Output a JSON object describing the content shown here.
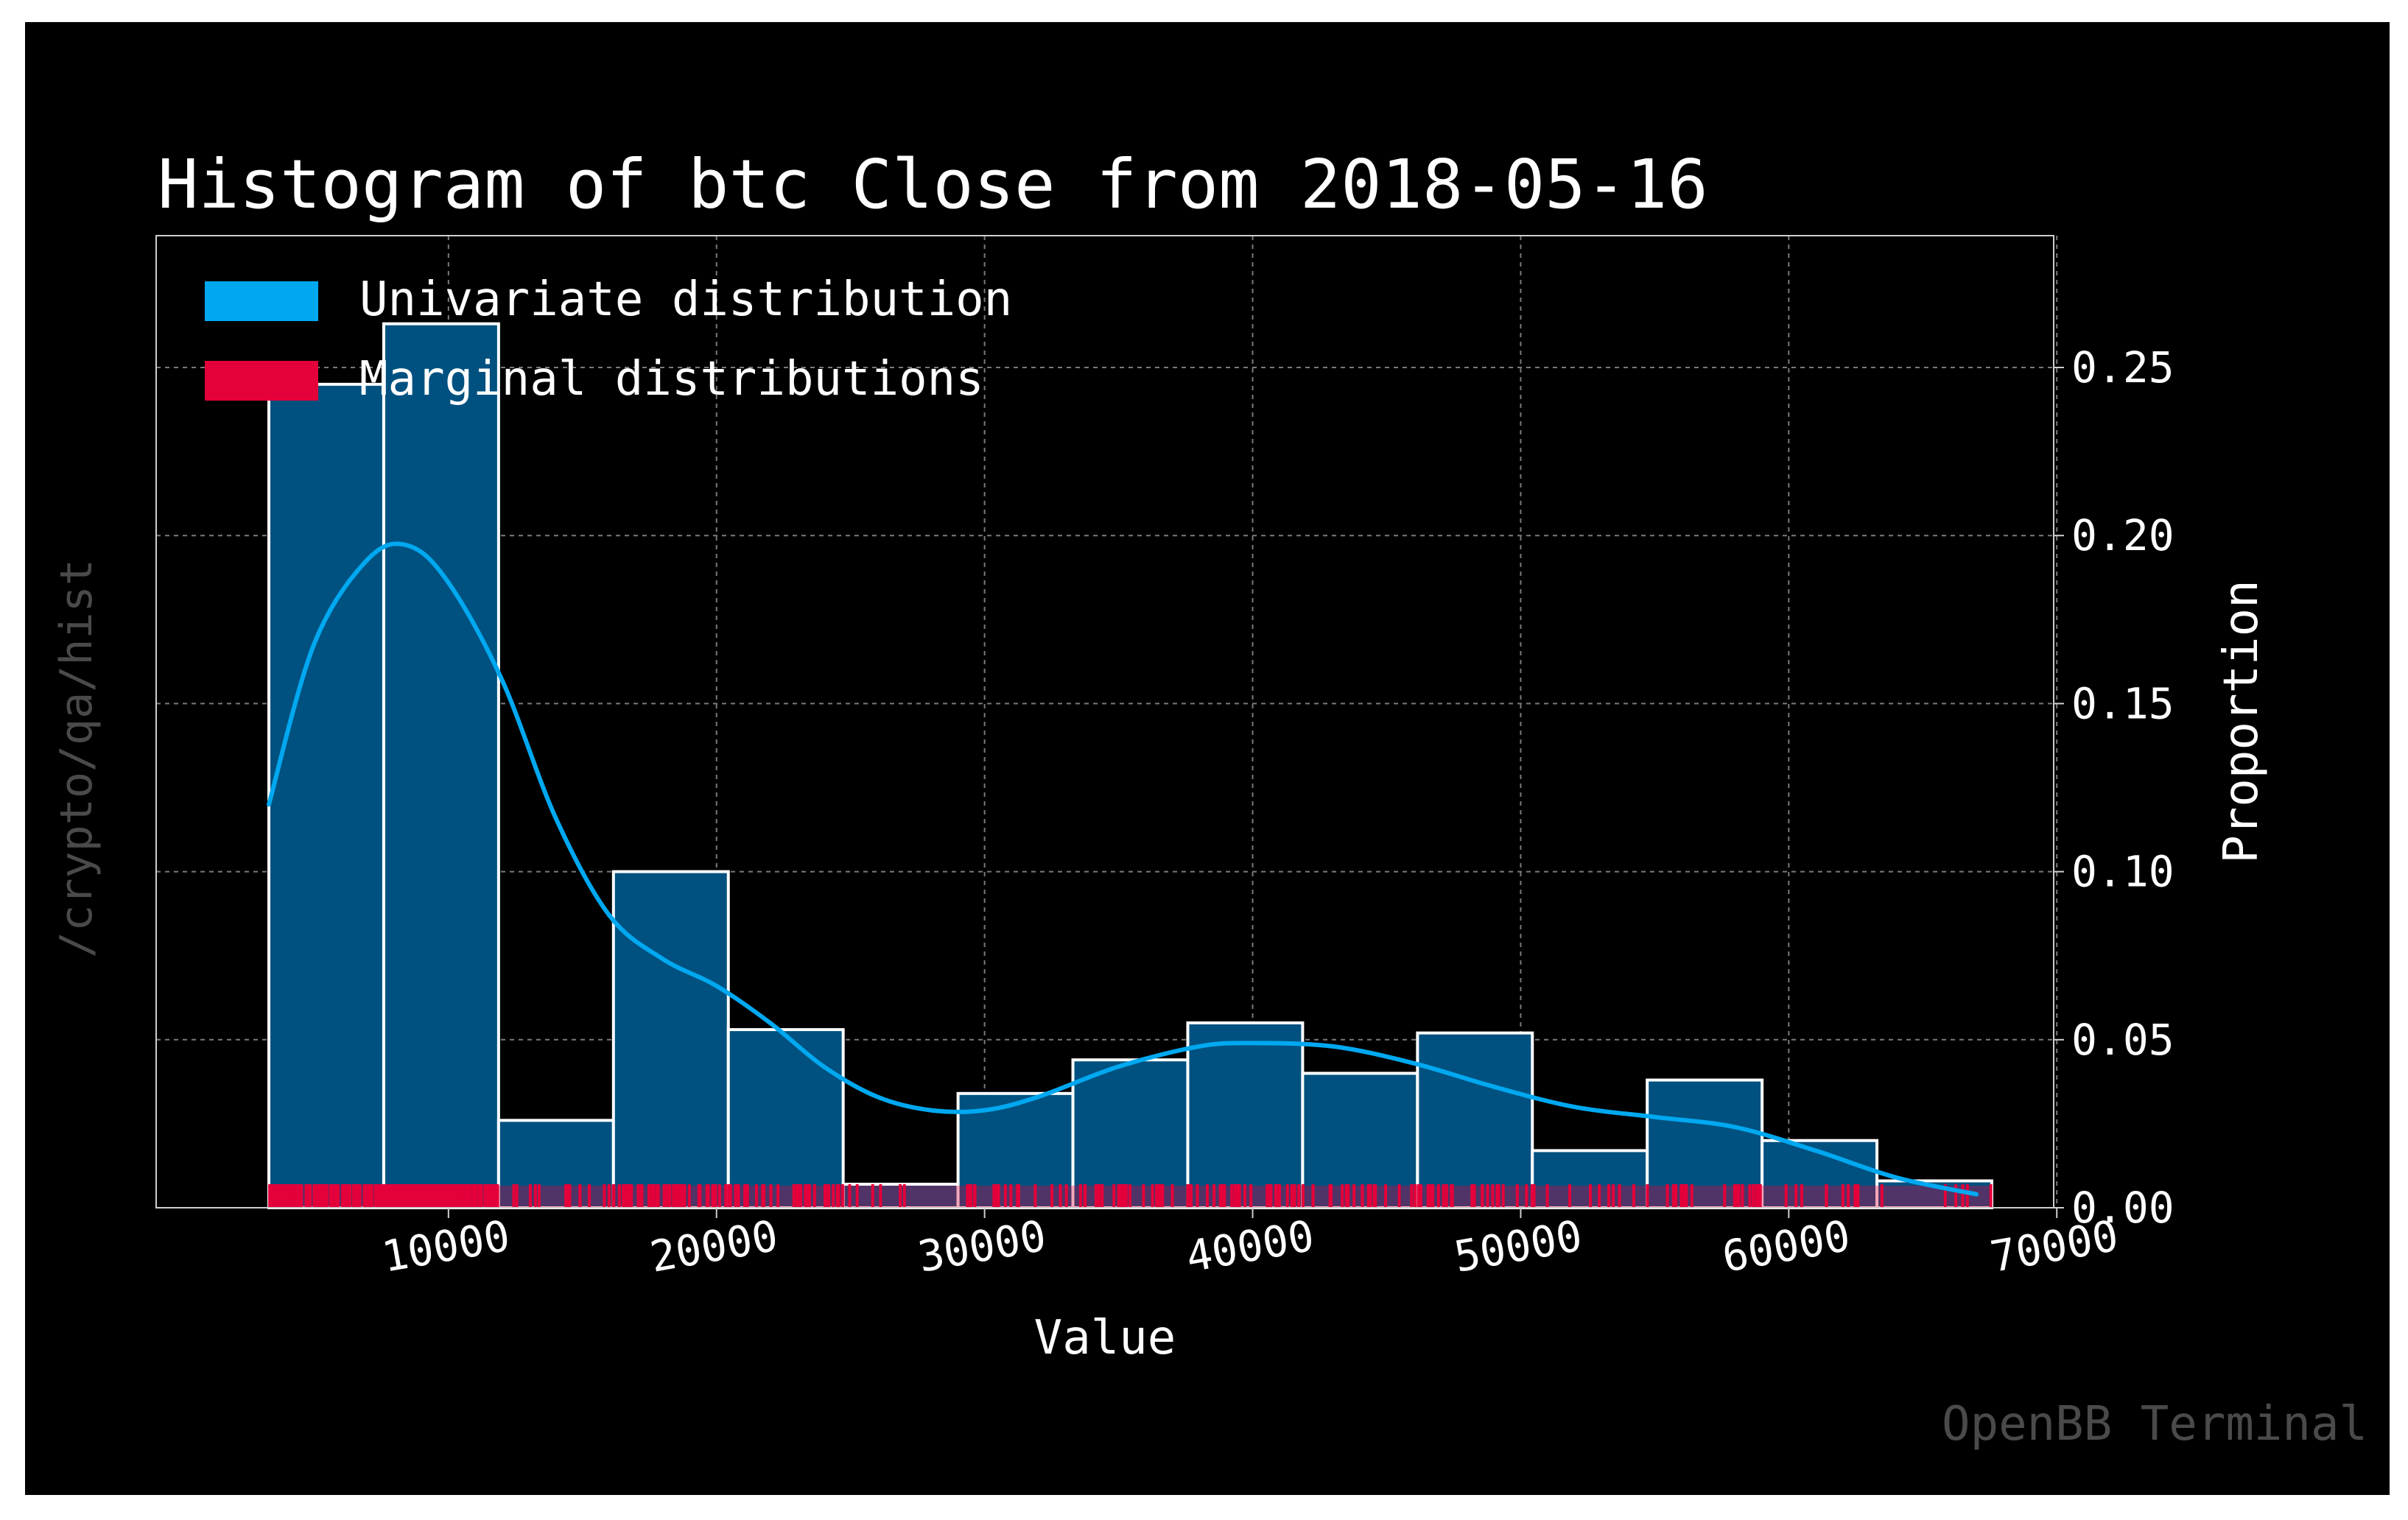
{
  "chart_data": {
    "type": "bar",
    "title": "Histogram of btc Close from 2018-05-16",
    "xlabel": "Value",
    "ylabel": "Proportion",
    "xlim": [
      0,
      70000
    ],
    "ylim": [
      0,
      0.28
    ],
    "xticks": [
      "10000",
      "20000",
      "30000",
      "40000",
      "50000",
      "60000",
      "70000"
    ],
    "yticks": [
      "0.00",
      "0.05",
      "0.10",
      "0.15",
      "0.20",
      "0.25"
    ],
    "bin_edges": [
      3300,
      7585,
      11870,
      16155,
      20440,
      24725,
      29010,
      33295,
      37580,
      41865,
      46150,
      50435,
      54720,
      59005,
      63290,
      67575
    ],
    "values": [
      0.245,
      0.263,
      0.026,
      0.1,
      0.053,
      0.007,
      0.034,
      0.044,
      0.055,
      0.04,
      0.052,
      0.017,
      0.038,
      0.02,
      0.008
    ],
    "kde": {
      "x": [
        3300,
        5000,
        7000,
        8500,
        10000,
        12000,
        14000,
        16000,
        18000,
        20000,
        22000,
        24000,
        26000,
        28000,
        30000,
        32000,
        35000,
        38000,
        40000,
        43000,
        46000,
        49000,
        52000,
        55000,
        58000,
        61000,
        64000,
        67000
      ],
      "y": [
        0.12,
        0.168,
        0.193,
        0.197,
        0.186,
        0.157,
        0.116,
        0.087,
        0.074,
        0.066,
        0.055,
        0.042,
        0.033,
        0.029,
        0.029,
        0.033,
        0.042,
        0.048,
        0.049,
        0.048,
        0.043,
        0.036,
        0.03,
        0.027,
        0.024,
        0.017,
        0.009,
        0.004
      ]
    },
    "rug_range": [
      3300,
      67575
    ],
    "legend": {
      "position": "top-left",
      "entries": [
        {
          "label": "Univariate distribution",
          "color": "#00a8f0"
        },
        {
          "label": "Marginal distributions",
          "color": "#e4003a"
        }
      ]
    },
    "grid": true
  },
  "side_label": "/crypto/qa/hist",
  "watermark": "OpenBB Terminal",
  "colors": {
    "background": "#000000",
    "bar_fill": "#005180",
    "bar_edge": "#ffffff",
    "kde": "#00a8f0",
    "rug": "#e4003a",
    "grid": "#7a7a7a",
    "text": "#ffffff",
    "muted": "#4a4a4a"
  }
}
